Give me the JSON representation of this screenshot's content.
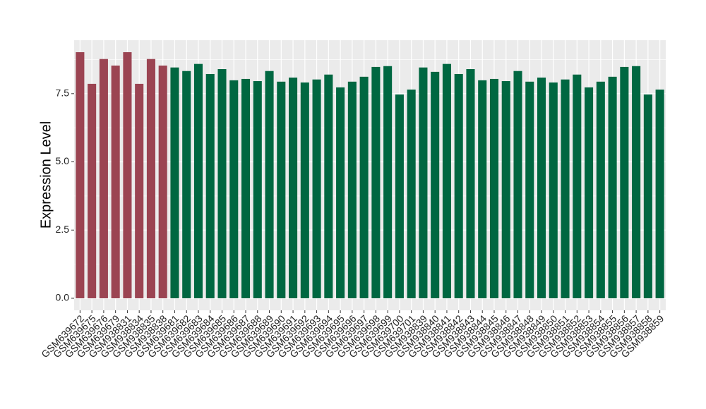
{
  "chart_data": {
    "type": "bar",
    "y_label": "Expression Level",
    "categories": [
      "GSM639672",
      "GSM639675",
      "GSM639676",
      "GSM639679",
      "GSM938831",
      "GSM938834",
      "GSM938835",
      "GSM938838",
      "GSM639681",
      "GSM639682",
      "GSM639683",
      "GSM639684",
      "GSM639685",
      "GSM639686",
      "GSM639687",
      "GSM639688",
      "GSM639689",
      "GSM639690",
      "GSM639691",
      "GSM639692",
      "GSM639693",
      "GSM639694",
      "GSM639695",
      "GSM639696",
      "GSM639697",
      "GSM639698",
      "GSM639699",
      "GSM639700",
      "GSM639701",
      "GSM938839",
      "GSM938840",
      "GSM938841",
      "GSM938842",
      "GSM938843",
      "GSM938844",
      "GSM938845",
      "GSM938846",
      "GSM938847",
      "GSM938848",
      "GSM938849",
      "GSM938850",
      "GSM938851",
      "GSM938852",
      "GSM938853",
      "GSM938854",
      "GSM938855",
      "GSM938856",
      "GSM938857",
      "GSM938858",
      "GSM938859"
    ],
    "values": [
      9.02,
      7.86,
      8.77,
      8.53,
      9.02,
      7.86,
      8.77,
      8.53,
      8.46,
      8.33,
      8.59,
      8.22,
      8.4,
      7.99,
      8.04,
      7.96,
      8.33,
      7.94,
      8.09,
      7.91,
      8.02,
      8.2,
      7.73,
      7.94,
      8.12,
      8.48,
      8.51,
      7.47,
      7.65,
      8.46,
      8.3,
      8.59,
      8.22,
      8.4,
      7.99,
      8.04,
      7.96,
      8.33,
      7.94,
      8.09,
      7.91,
      8.02,
      8.2,
      7.73,
      7.94,
      8.12,
      8.48,
      8.51,
      7.47,
      7.65
    ],
    "colors": [
      "#9b4452",
      "#9b4452",
      "#9b4452",
      "#9b4452",
      "#9b4452",
      "#9b4452",
      "#9b4452",
      "#9b4452",
      "#006741",
      "#006741",
      "#006741",
      "#006741",
      "#006741",
      "#006741",
      "#006741",
      "#006741",
      "#006741",
      "#006741",
      "#006741",
      "#006741",
      "#006741",
      "#006741",
      "#006741",
      "#006741",
      "#006741",
      "#006741",
      "#006741",
      "#006741",
      "#006741",
      "#006741",
      "#006741",
      "#006741",
      "#006741",
      "#006741",
      "#006741",
      "#006741",
      "#006741",
      "#006741",
      "#006741",
      "#006741",
      "#006741",
      "#006741",
      "#006741",
      "#006741",
      "#006741",
      "#006741",
      "#006741",
      "#006741",
      "#006741",
      "#006741"
    ],
    "ylim": [
      -0.44,
      9.46
    ],
    "yticks": [
      {
        "value": 0,
        "label": "0.0"
      },
      {
        "value": 2.5,
        "label": "2.5"
      },
      {
        "value": 5,
        "label": "5.0"
      },
      {
        "value": 7.5,
        "label": "7.5"
      }
    ],
    "grid": true
  }
}
